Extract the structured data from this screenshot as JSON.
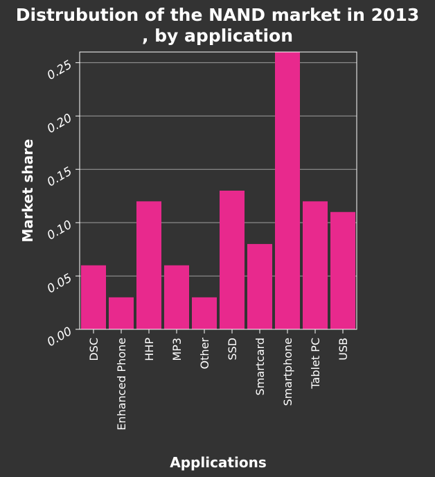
{
  "chart_data": {
    "type": "bar",
    "title_lines": [
      "Distrubution of the NAND market in 2013",
      ", by application"
    ],
    "xlabel": "Applications",
    "ylabel": "Market share",
    "categories": [
      "DSC",
      "Enhanced Phone",
      "HHP",
      "MP3",
      "Other",
      "SSD",
      "Smartcard",
      "Smartphone",
      "Tablet PC",
      "USB"
    ],
    "values": [
      0.06,
      0.03,
      0.12,
      0.06,
      0.03,
      0.13,
      0.08,
      0.26,
      0.12,
      0.11
    ],
    "yticks": [
      "0.00",
      "0.05",
      "0.10",
      "0.15",
      "0.20",
      "0.25"
    ],
    "ylim": [
      0,
      0.26
    ],
    "grid": true,
    "legend": "none",
    "bar_color": "#e8298d",
    "background_color": "#333333",
    "grid_color": "#a0a0a0",
    "text_color": "#ffffff"
  }
}
